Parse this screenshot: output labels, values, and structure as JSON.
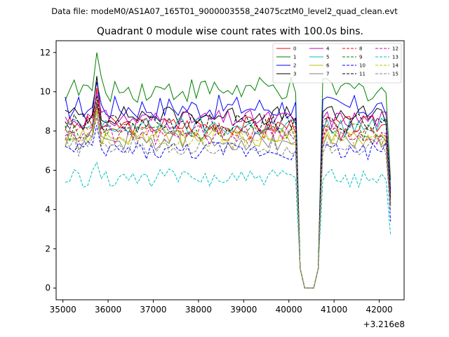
{
  "figure": {
    "suptitle": "Data file: modeM0/AS1A07_165T01_9000003558_24075cztM0_level2_quad_clean.evt"
  },
  "chart_data": {
    "type": "line",
    "title": "Quadrant 0 module wise count rates with 100.0s bins.",
    "xlabel": "",
    "ylabel": "",
    "x_offset_label": "+3.216e8",
    "xlim": [
      34850,
      42550
    ],
    "ylim": [
      -0.6,
      12.6
    ],
    "x_ticks": [
      35000,
      36000,
      37000,
      38000,
      39000,
      40000,
      41000,
      42000
    ],
    "x_tick_labels": [
      "35000",
      "36000",
      "37000",
      "38000",
      "39000",
      "40000",
      "41000",
      "42000"
    ],
    "y_ticks": [
      0,
      2,
      4,
      6,
      8,
      10,
      12
    ],
    "y_tick_labels": [
      "0",
      "2",
      "4",
      "6",
      "8",
      "10",
      "12"
    ],
    "grid": false,
    "legend_position": "top-right",
    "gap": {
      "start": 40200,
      "end": 40700,
      "low_points": [
        40350,
        40550
      ]
    },
    "x_start": 35050,
    "x_step": 100,
    "x_end": 42250,
    "series": [
      {
        "name": "0",
        "color": "#ff0000",
        "dash": "solid",
        "level": 8.3,
        "amp": 0.3,
        "peak": 10.2,
        "last": 4.2
      },
      {
        "name": "1",
        "color": "#008000",
        "dash": "solid",
        "level": 10.1,
        "amp": 0.4,
        "peak": 12.0,
        "last": 5.5
      },
      {
        "name": "2",
        "color": "#0000ff",
        "dash": "solid",
        "level": 9.2,
        "amp": 0.4,
        "peak": 10.5,
        "last": 5.0
      },
      {
        "name": "3",
        "color": "#000000",
        "dash": "solid",
        "level": 8.8,
        "amp": 0.3,
        "peak": 10.8,
        "last": 4.8
      },
      {
        "name": "4",
        "color": "#bf00bf",
        "dash": "solid",
        "level": 8.6,
        "amp": 0.3,
        "peak": 10.0,
        "last": 4.6
      },
      {
        "name": "5",
        "color": "#00bfbf",
        "dash": "solid",
        "level": 8.2,
        "amp": 0.3,
        "peak": 9.5,
        "last": 4.4
      },
      {
        "name": "6",
        "color": "#bfbf00",
        "dash": "solid",
        "level": 7.7,
        "amp": 0.3,
        "peak": 9.2,
        "last": 4.3
      },
      {
        "name": "7",
        "color": "#808080",
        "dash": "solid",
        "level": 7.5,
        "amp": 0.3,
        "peak": 9.0,
        "last": 4.2
      },
      {
        "name": "8",
        "color": "#ff0000",
        "dash": "dashed",
        "level": 8.0,
        "amp": 0.3,
        "peak": 9.6,
        "last": 4.3
      },
      {
        "name": "9",
        "color": "#008000",
        "dash": "dashed",
        "level": 7.9,
        "amp": 0.3,
        "peak": 9.4,
        "last": 4.2
      },
      {
        "name": "10",
        "color": "#0000ff",
        "dash": "dashed",
        "level": 7.0,
        "amp": 0.3,
        "peak": 8.3,
        "last": 3.4
      },
      {
        "name": "11",
        "color": "#000000",
        "dash": "dashed",
        "level": 8.4,
        "amp": 0.3,
        "peak": 9.8,
        "last": 4.5
      },
      {
        "name": "12",
        "color": "#bf00bf",
        "dash": "dashed",
        "level": 7.8,
        "amp": 0.3,
        "peak": 9.3,
        "last": 4.1
      },
      {
        "name": "13",
        "color": "#00bfbf",
        "dash": "dashed",
        "level": 5.6,
        "amp": 0.3,
        "peak": 6.4,
        "last": 2.7
      },
      {
        "name": "14",
        "color": "#bfbf00",
        "dash": "dashed",
        "level": 7.6,
        "amp": 0.3,
        "peak": 9.0,
        "last": 4.0
      },
      {
        "name": "15",
        "color": "#808080",
        "dash": "dashed",
        "level": 7.2,
        "amp": 0.3,
        "peak": 8.7,
        "last": 3.9
      }
    ]
  }
}
